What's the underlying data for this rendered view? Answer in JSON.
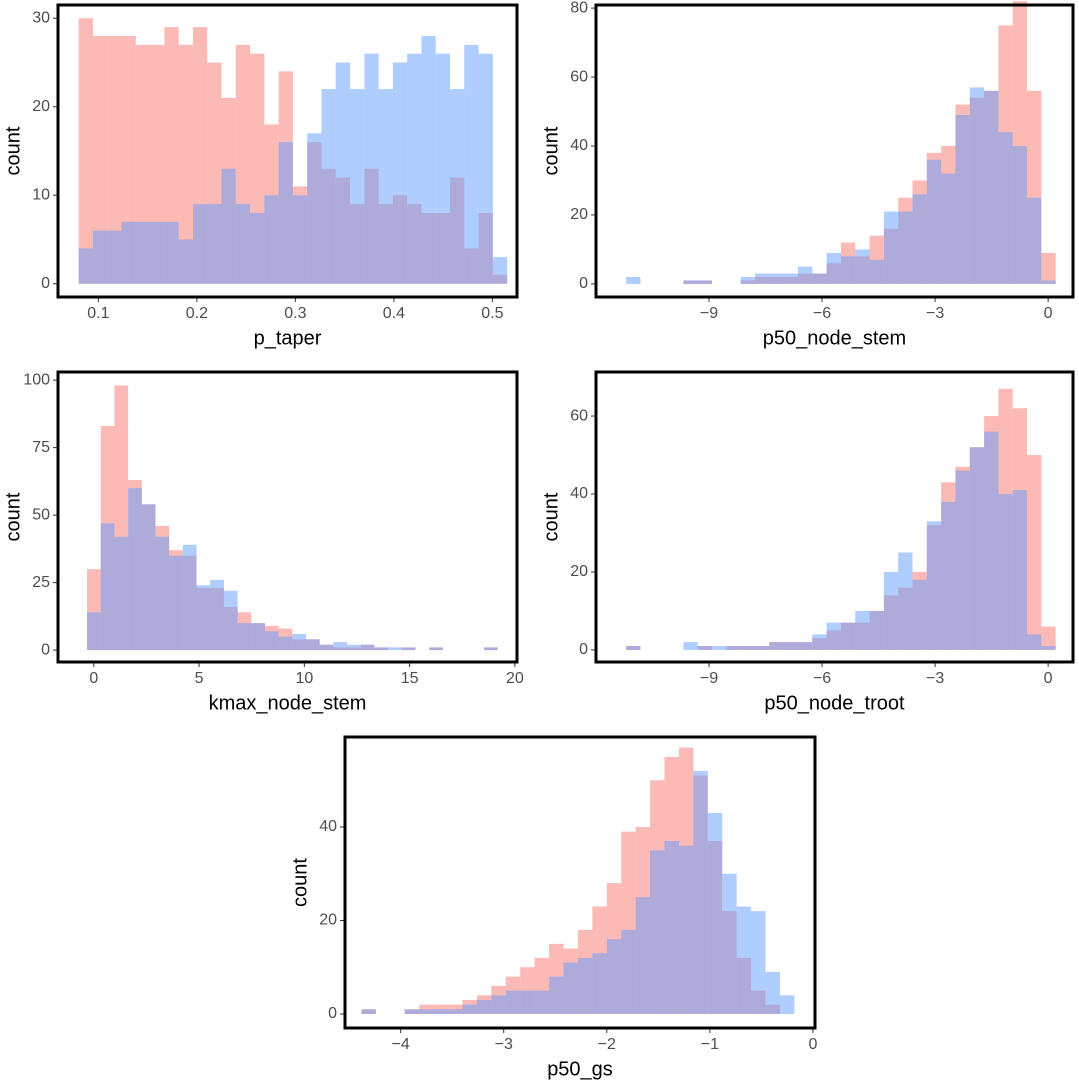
{
  "chart_data": [
    {
      "type": "histogram",
      "x_label": "p_taper",
      "y_label": "count",
      "bins": [
        0.08,
        0.0945,
        0.109,
        0.1235,
        0.138,
        0.1525,
        0.167,
        0.1815,
        0.196,
        0.2105,
        0.225,
        0.2395,
        0.254,
        0.2685,
        0.283,
        0.2975,
        0.312,
        0.3265,
        0.341,
        0.3555,
        0.37,
        0.3845,
        0.399,
        0.4135,
        0.428,
        0.4425,
        0.457,
        0.4715,
        0.486,
        0.5005,
        0.515
      ],
      "series": [
        {
          "color": "#f8766d",
          "values": [
            30,
            28,
            28,
            28,
            27,
            27,
            29,
            27,
            29,
            25,
            21,
            27,
            26,
            18,
            24,
            11,
            16,
            13,
            12,
            9,
            13,
            9,
            10,
            9,
            8,
            8,
            12,
            4,
            8,
            1
          ]
        },
        {
          "color": "#619cff",
          "values": [
            4,
            6,
            6,
            7,
            7,
            7,
            7,
            5,
            9,
            9,
            13,
            9,
            8,
            10,
            16,
            10,
            17,
            22,
            25,
            22,
            26,
            22,
            25,
            26,
            28,
            26,
            22,
            27,
            26,
            3
          ]
        }
      ],
      "xlim": [
        0.059,
        0.525
      ],
      "ylim": [
        -1.5,
        31.5
      ],
      "xticks": [
        0.1,
        0.2,
        0.3,
        0.4,
        0.5
      ],
      "yticks": [
        0,
        10,
        20,
        30
      ]
    },
    {
      "type": "histogram",
      "x_label": "p50_node_stem",
      "y_label": "count",
      "bins": [
        -11.2,
        -10.82,
        -10.44,
        -10.06,
        -9.68,
        -9.3,
        -8.92,
        -8.54,
        -8.16,
        -7.78,
        -7.4,
        -7.02,
        -6.64,
        -6.26,
        -5.88,
        -5.5,
        -5.12,
        -4.74,
        -4.36,
        -3.98,
        -3.6,
        -3.22,
        -2.84,
        -2.46,
        -2.08,
        -1.7,
        -1.32,
        -0.94,
        -0.56,
        -0.18,
        0.2
      ],
      "series": [
        {
          "color": "#f8766d",
          "values": [
            0,
            0,
            0,
            0,
            1,
            1,
            0,
            0,
            1,
            2,
            2,
            2,
            3,
            3,
            6,
            12,
            8,
            14,
            16,
            25,
            30,
            38,
            40,
            52,
            54,
            56,
            75,
            82,
            56,
            9
          ]
        },
        {
          "color": "#619cff",
          "values": [
            2,
            0,
            0,
            0,
            1,
            1,
            0,
            0,
            2,
            3,
            3,
            3,
            5,
            3,
            9,
            8,
            10,
            7,
            21,
            21,
            26,
            36,
            32,
            49,
            57,
            56,
            44,
            40,
            25,
            1
          ]
        }
      ],
      "xlim": [
        -12.0,
        0.66
      ],
      "ylim": [
        -3.8,
        80.9
      ],
      "xticks": [
        {
          "value": -9,
          "label": "−9"
        },
        {
          "value": -6,
          "label": "−6"
        },
        {
          "value": -3,
          "label": "−3"
        },
        0
      ],
      "yticks": [
        0,
        20,
        40,
        60,
        80
      ]
    },
    {
      "type": "histogram",
      "x_label": "kmax_node_stem",
      "y_label": "count",
      "bins": [
        -0.32,
        0.33,
        0.98,
        1.63,
        2.28,
        2.93,
        3.58,
        4.23,
        4.88,
        5.53,
        6.18,
        6.83,
        7.48,
        8.13,
        8.78,
        9.43,
        10.08,
        10.73,
        11.38,
        12.03,
        12.68,
        13.33,
        13.98,
        14.63,
        15.28,
        15.93,
        16.58,
        17.23,
        17.88,
        18.53,
        19.18
      ],
      "series": [
        {
          "color": "#f8766d",
          "values": [
            30,
            83,
            98,
            63,
            54,
            46,
            37,
            35,
            23,
            23,
            16,
            14,
            10,
            9,
            8,
            4,
            4,
            2,
            1,
            1,
            2,
            1,
            0,
            1,
            0,
            1,
            0,
            0,
            0,
            1
          ]
        },
        {
          "color": "#619cff",
          "values": [
            14,
            47,
            42,
            60,
            54,
            42,
            35,
            39,
            24,
            26,
            22,
            10,
            10,
            7,
            5,
            6,
            4,
            2,
            3,
            2,
            2,
            1,
            1,
            1,
            0,
            1,
            0,
            0,
            0,
            1
          ]
        }
      ],
      "xlim": [
        -1.7,
        20.1
      ],
      "ylim": [
        -4.4,
        103
      ],
      "xticks": [
        0,
        5,
        10,
        15,
        20
      ],
      "yticks": [
        0,
        25,
        50,
        75,
        100
      ]
    },
    {
      "type": "histogram",
      "x_label": "p50_node_troot",
      "y_label": "count",
      "bins": [
        -11.2,
        -10.82,
        -10.44,
        -10.06,
        -9.68,
        -9.3,
        -8.92,
        -8.54,
        -8.16,
        -7.78,
        -7.4,
        -7.02,
        -6.64,
        -6.26,
        -5.88,
        -5.5,
        -5.12,
        -4.74,
        -4.36,
        -3.98,
        -3.6,
        -3.22,
        -2.84,
        -2.46,
        -2.08,
        -1.7,
        -1.32,
        -0.94,
        -0.56,
        -0.18,
        0.2
      ],
      "series": [
        {
          "color": "#f8766d",
          "values": [
            1,
            0,
            0,
            0,
            0,
            1,
            0,
            1,
            1,
            1,
            2,
            2,
            2,
            3,
            5,
            7,
            7,
            10,
            14,
            16,
            20,
            32,
            43,
            47,
            52,
            60,
            67,
            62,
            50,
            6
          ]
        },
        {
          "color": "#619cff",
          "values": [
            1,
            0,
            0,
            0,
            2,
            1,
            1,
            1,
            1,
            1,
            2,
            2,
            2,
            4,
            7,
            7,
            10,
            10,
            20,
            25,
            18,
            33,
            38,
            46,
            52,
            56,
            40,
            41,
            4,
            1
          ]
        }
      ],
      "xlim": [
        -12.0,
        0.66
      ],
      "ylim": [
        -3.1,
        71.3
      ],
      "xticks": [
        {
          "value": -9,
          "label": "−9"
        },
        {
          "value": -6,
          "label": "−6"
        },
        {
          "value": -3,
          "label": "−3"
        },
        0
      ],
      "yticks": [
        0,
        20,
        40,
        60
      ]
    },
    {
      "type": "histogram",
      "x_label": "p50_gs",
      "y_label": "count",
      "bins": [
        -4.38,
        -4.24,
        -4.1,
        -3.96,
        -3.82,
        -3.68,
        -3.54,
        -3.4,
        -3.26,
        -3.12,
        -2.98,
        -2.84,
        -2.7,
        -2.56,
        -2.42,
        -2.28,
        -2.14,
        -2.0,
        -1.86,
        -1.72,
        -1.58,
        -1.44,
        -1.3,
        -1.16,
        -1.02,
        -0.88,
        -0.74,
        -0.6,
        -0.46,
        -0.32,
        -0.18
      ],
      "series": [
        {
          "color": "#f8766d",
          "values": [
            1,
            0,
            0,
            1,
            2,
            2,
            2,
            3,
            4,
            6,
            8,
            10,
            12,
            15,
            14,
            18,
            23,
            28,
            39,
            40,
            50,
            55,
            57,
            51,
            37,
            22,
            12,
            5,
            2,
            0
          ]
        },
        {
          "color": "#619cff",
          "values": [
            1,
            0,
            0,
            1,
            1,
            1,
            1,
            2,
            3,
            4,
            5,
            5,
            5,
            8,
            11,
            12,
            13,
            16,
            18,
            25,
            35,
            37,
            36,
            52,
            43,
            30,
            23,
            22,
            9,
            4
          ]
        }
      ],
      "xlim": [
        -4.54,
        0.02
      ],
      "ylim": [
        -3.0,
        59.25
      ],
      "xticks": [
        {
          "value": -4,
          "label": "−4"
        },
        {
          "value": -3,
          "label": "−3"
        },
        {
          "value": -2,
          "label": "−2"
        },
        {
          "value": -1,
          "label": "−1"
        },
        0
      ],
      "yticks": [
        0,
        20,
        40
      ]
    }
  ]
}
